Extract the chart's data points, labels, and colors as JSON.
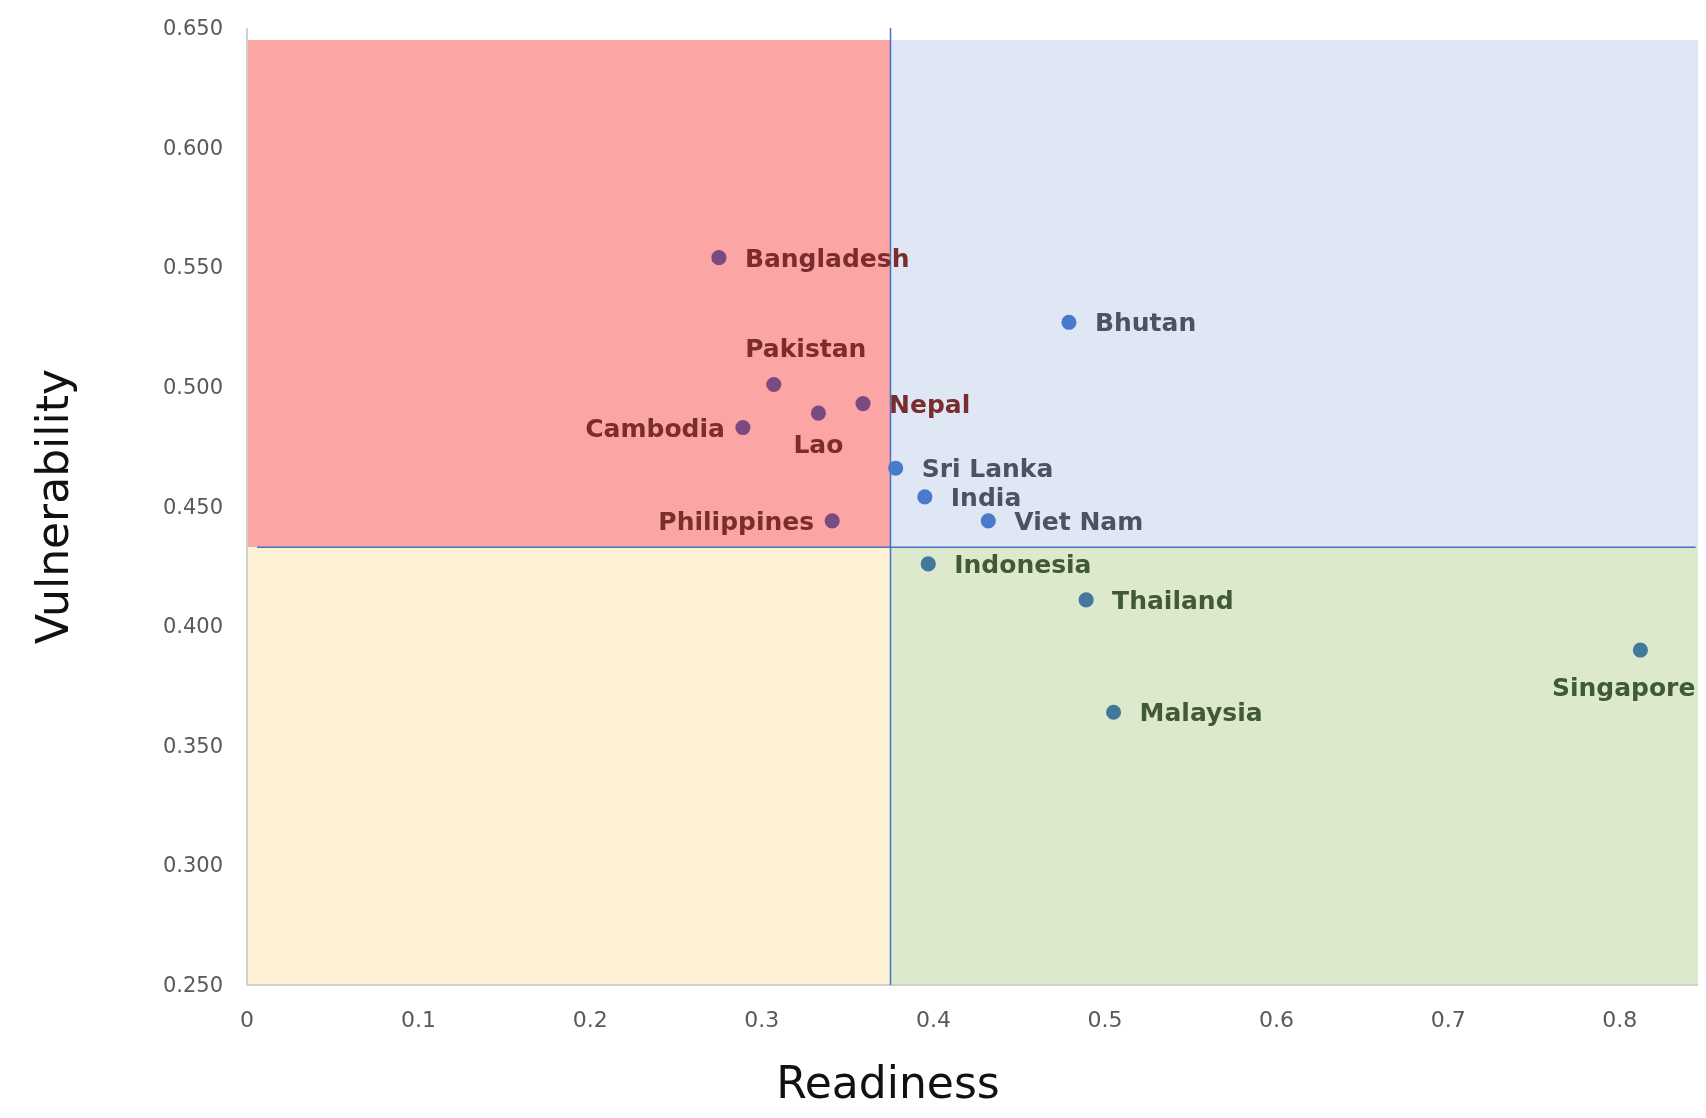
{
  "chart_data": {
    "type": "scatter",
    "xlabel": "Readiness",
    "ylabel": "Vulnerability",
    "xlim": [
      0,
      0.85
    ],
    "ylim": [
      0.25,
      0.65
    ],
    "xticks": [
      0,
      0.1,
      0.2,
      0.3,
      0.4,
      0.5,
      0.6,
      0.7,
      0.8
    ],
    "yticks": [
      {
        "value": 0.25,
        "label": "0.250"
      },
      {
        "value": 0.3,
        "label": "0.300"
      },
      {
        "value": 0.35,
        "label": "0.350"
      },
      {
        "value": 0.4,
        "label": "0.400"
      },
      {
        "value": 0.45,
        "label": "0.450"
      },
      {
        "value": 0.5,
        "label": "0.500"
      },
      {
        "value": 0.55,
        "label": "0.550"
      },
      {
        "value": 0.6,
        "label": "0.600"
      },
      {
        "value": 0.65,
        "label": "0.650"
      }
    ],
    "grid": false,
    "marker": "circle",
    "series": [
      {
        "color": "#7b4a80",
        "x": [
          0.275,
          0.307,
          0.359,
          0.333,
          0.289,
          0.341
        ],
        "values": [
          0.554,
          0.501,
          0.493,
          0.489,
          0.483,
          0.444
        ]
      },
      {
        "color": "#4a7acb",
        "x": [
          0.479,
          0.378,
          0.395,
          0.432
        ],
        "values": [
          0.527,
          0.466,
          0.454,
          0.444
        ]
      },
      {
        "color": "#44789a",
        "x": [
          0.397,
          0.489,
          0.812,
          0.505
        ],
        "values": [
          0.426,
          0.411,
          0.39,
          0.364
        ]
      }
    ],
    "ref_lines": [
      {
        "axis": "x",
        "value": 0.375,
        "color": "#4472c4"
      },
      {
        "axis": "y",
        "value": 0.433,
        "color": "#4472c4"
      }
    ],
    "annotations": [
      {
        "text": "Bangladesh",
        "x": 0.275,
        "y": 0.554
      },
      {
        "text": "Pakistan",
        "x": 0.307,
        "y": 0.501
      },
      {
        "text": "Nepal",
        "x": 0.359,
        "y": 0.493
      },
      {
        "text": "Lao",
        "x": 0.333,
        "y": 0.489
      },
      {
        "text": "Cambodia",
        "x": 0.289,
        "y": 0.483
      },
      {
        "text": "Philippines",
        "x": 0.341,
        "y": 0.444
      },
      {
        "text": "Bhutan",
        "x": 0.479,
        "y": 0.527
      },
      {
        "text": "Sri Lanka",
        "x": 0.378,
        "y": 0.466
      },
      {
        "text": "India",
        "x": 0.395,
        "y": 0.454
      },
      {
        "text": "Viet Nam",
        "x": 0.432,
        "y": 0.444
      },
      {
        "text": "Indonesia",
        "x": 0.397,
        "y": 0.426
      },
      {
        "text": "Thailand",
        "x": 0.489,
        "y": 0.411
      },
      {
        "text": "Singapore",
        "x": 0.812,
        "y": 0.39
      },
      {
        "text": "Malaysia",
        "x": 0.505,
        "y": 0.364
      }
    ]
  }
}
